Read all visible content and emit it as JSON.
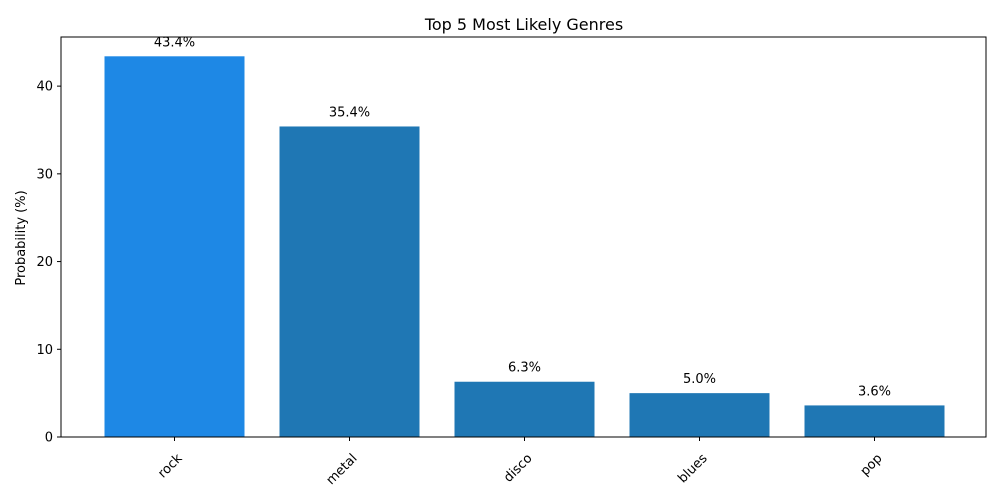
{
  "chart_data": {
    "type": "bar",
    "title": "Top 5 Most Likely Genres",
    "xlabel": "",
    "ylabel": "Probability (%)",
    "categories": [
      "rock",
      "metal",
      "disco",
      "blues",
      "pop"
    ],
    "values": [
      43.4,
      35.4,
      6.3,
      5.0,
      3.6
    ],
    "data_labels": [
      "43.4%",
      "35.4%",
      "6.3%",
      "5.0%",
      "3.6%"
    ],
    "ylim": [
      0,
      45.6
    ],
    "yticks": [
      0,
      10,
      20,
      30,
      40
    ],
    "grid": false,
    "legend": "none",
    "colors": {
      "highlight": "#1e88e5",
      "default": "#1f77b4"
    },
    "highlight_index": 0
  }
}
